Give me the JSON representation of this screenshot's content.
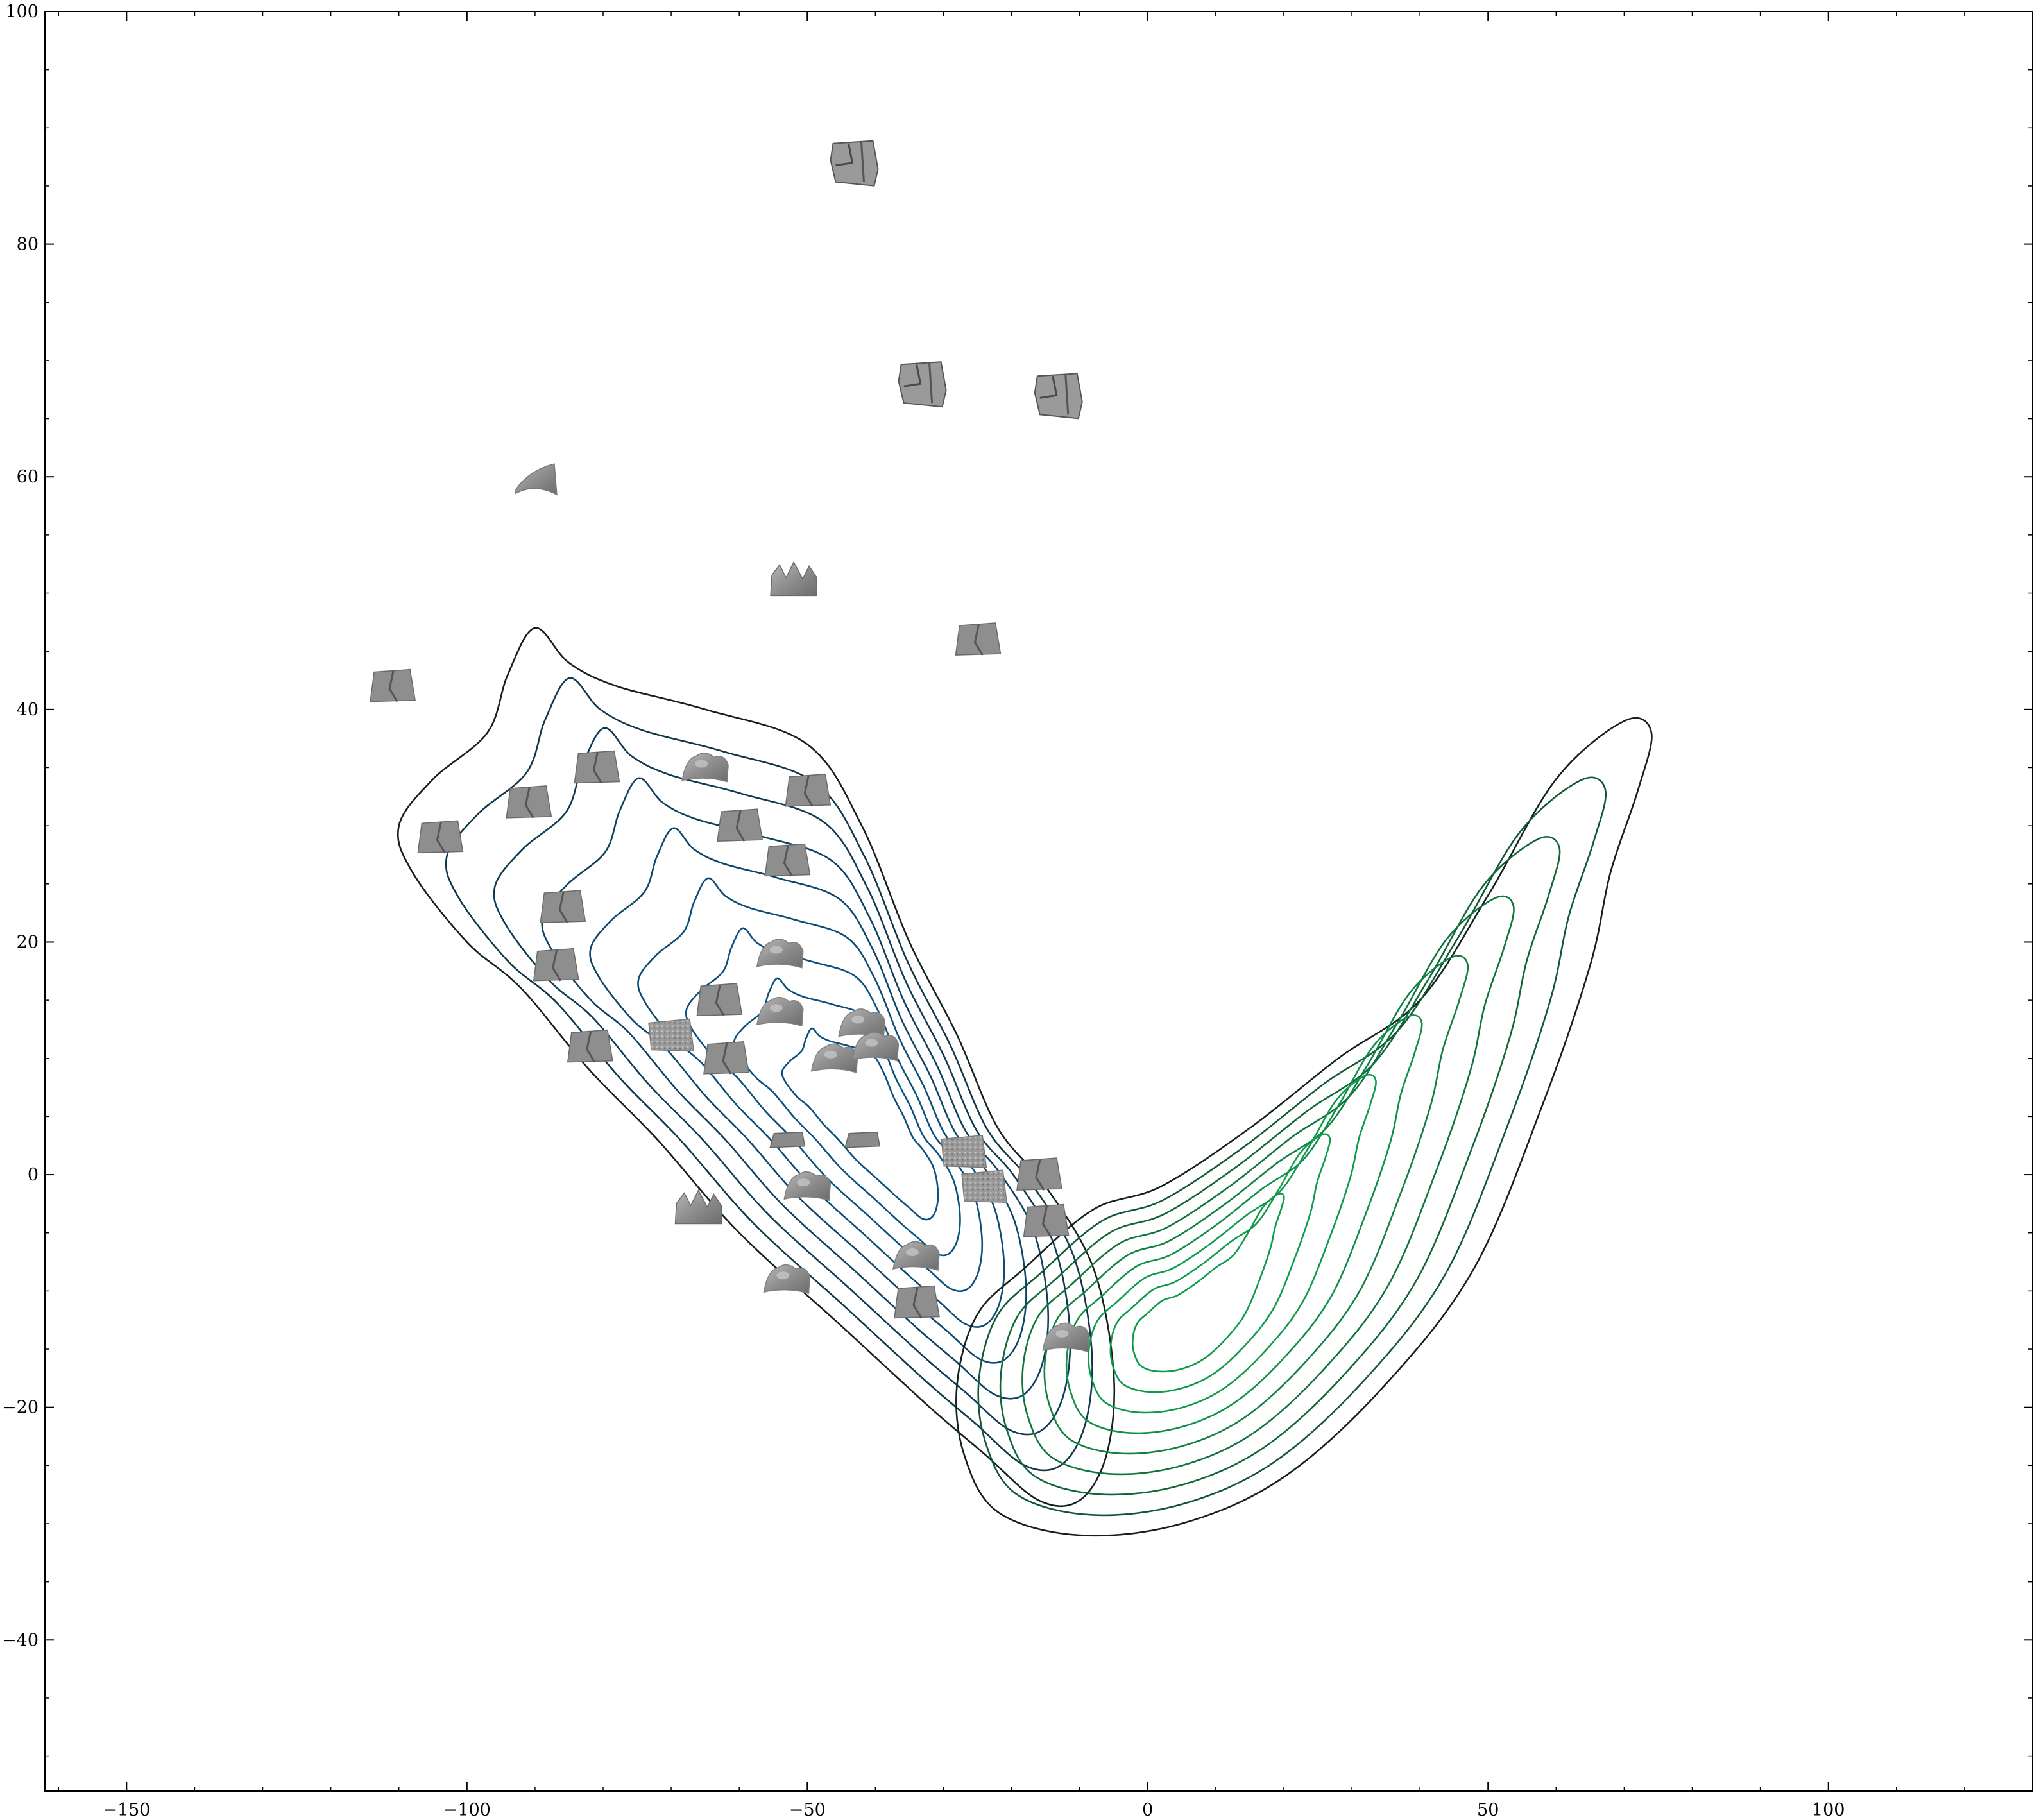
{
  "chart_data": {
    "type": "scatter",
    "subtype": "kde-contour-with-image-thumbnails",
    "title": "",
    "xlabel": "",
    "ylabel": "",
    "xlim": [
      -162,
      130
    ],
    "ylim": [
      -53,
      100
    ],
    "x_ticks": [
      -150,
      -100,
      -50,
      0,
      50,
      100
    ],
    "y_ticks": [
      -40,
      -20,
      0,
      20,
      40,
      60,
      80,
      100
    ],
    "x_tick_labels": [
      "−150",
      "−100",
      "−50",
      "0",
      "50",
      "100"
    ],
    "y_tick_labels": [
      "−40",
      "−20",
      "0",
      "20",
      "40",
      "60",
      "80",
      "100"
    ],
    "grid": false,
    "legend": "none",
    "colors": {
      "blue_density": "#0b4f7c",
      "green_density": "#0f9a4c",
      "outer_contour": "#13201d",
      "thumbnail_fill": "#8e8e8e"
    },
    "densities": [
      {
        "id": "blue",
        "center": [
          -38,
          3
        ],
        "levels": 9,
        "outer_contour": [
          [
            -110,
            30
          ],
          [
            -105,
            34
          ],
          [
            -97,
            38
          ],
          [
            -94,
            43
          ],
          [
            -90,
            47
          ],
          [
            -85,
            44
          ],
          [
            -78,
            42
          ],
          [
            -65,
            40
          ],
          [
            -50,
            37
          ],
          [
            -42,
            30
          ],
          [
            -35,
            20
          ],
          [
            -28,
            12
          ],
          [
            -22,
            4
          ],
          [
            -15,
            -1
          ],
          [
            -8,
            -8
          ],
          [
            -5,
            -17
          ],
          [
            -6,
            -24
          ],
          [
            -10,
            -28
          ],
          [
            -16,
            -28
          ],
          [
            -24,
            -24
          ],
          [
            -32,
            -20
          ],
          [
            -45,
            -13
          ],
          [
            -60,
            -5
          ],
          [
            -72,
            3
          ],
          [
            -82,
            9
          ],
          [
            -92,
            16
          ],
          [
            -100,
            20
          ],
          [
            -108,
            26
          ]
        ]
      },
      {
        "id": "green",
        "center": [
          5,
          -13
        ],
        "levels": 9,
        "outer_contour": [
          [
            -28,
            -18
          ],
          [
            -27,
            -24
          ],
          [
            -22,
            -29
          ],
          [
            -10,
            -31
          ],
          [
            5,
            -30
          ],
          [
            20,
            -26
          ],
          [
            35,
            -18
          ],
          [
            48,
            -8
          ],
          [
            58,
            6
          ],
          [
            65,
            18
          ],
          [
            68,
            26
          ],
          [
            72,
            33
          ],
          [
            74,
            38
          ],
          [
            70,
            39
          ],
          [
            60,
            34
          ],
          [
            50,
            24
          ],
          [
            40,
            15
          ],
          [
            28,
            10
          ],
          [
            15,
            4
          ],
          [
            2,
            -1
          ],
          [
            -8,
            -3
          ],
          [
            -18,
            -8
          ],
          [
            -25,
            -12
          ]
        ]
      }
    ],
    "thumbnail_points": [
      {
        "x": -43,
        "y": 87,
        "shape": "box"
      },
      {
        "x": -33,
        "y": 68,
        "shape": "box"
      },
      {
        "x": -13,
        "y": 67,
        "shape": "box"
      },
      {
        "x": -90,
        "y": 60,
        "shape": "sheet"
      },
      {
        "x": -52,
        "y": 51,
        "shape": "peaks"
      },
      {
        "x": -25,
        "y": 46,
        "shape": "slab"
      },
      {
        "x": -111,
        "y": 42,
        "shape": "slab"
      },
      {
        "x": -81,
        "y": 35,
        "shape": "slab"
      },
      {
        "x": -65,
        "y": 35,
        "shape": "bumpy"
      },
      {
        "x": -50,
        "y": 33,
        "shape": "slab"
      },
      {
        "x": -91,
        "y": 32,
        "shape": "slab"
      },
      {
        "x": -104,
        "y": 29,
        "shape": "slab"
      },
      {
        "x": -60,
        "y": 30,
        "shape": "slab"
      },
      {
        "x": -53,
        "y": 27,
        "shape": "slab"
      },
      {
        "x": -86,
        "y": 23,
        "shape": "slab"
      },
      {
        "x": -54,
        "y": 19,
        "shape": "bumpy"
      },
      {
        "x": -87,
        "y": 18,
        "shape": "slab"
      },
      {
        "x": -63,
        "y": 15,
        "shape": "slab"
      },
      {
        "x": -54,
        "y": 14,
        "shape": "bumpy"
      },
      {
        "x": -42,
        "y": 13,
        "shape": "bumpy"
      },
      {
        "x": -70,
        "y": 12,
        "shape": "speckled"
      },
      {
        "x": -82,
        "y": 11,
        "shape": "slab"
      },
      {
        "x": -62,
        "y": 10,
        "shape": "slab"
      },
      {
        "x": -46,
        "y": 10,
        "shape": "bumpy"
      },
      {
        "x": -40,
        "y": 11,
        "shape": "bumpy"
      },
      {
        "x": -53,
        "y": 3,
        "shape": "flat"
      },
      {
        "x": -42,
        "y": 3,
        "shape": "flat"
      },
      {
        "x": -27,
        "y": 2,
        "shape": "speckled"
      },
      {
        "x": -16,
        "y": 0,
        "shape": "slab"
      },
      {
        "x": -50,
        "y": -1,
        "shape": "bumpy"
      },
      {
        "x": -24,
        "y": -1,
        "shape": "speckled"
      },
      {
        "x": -15,
        "y": -4,
        "shape": "slab"
      },
      {
        "x": -66,
        "y": -3,
        "shape": "peaks"
      },
      {
        "x": -34,
        "y": -7,
        "shape": "bumpy"
      },
      {
        "x": -53,
        "y": -9,
        "shape": "bumpy"
      },
      {
        "x": -34,
        "y": -11,
        "shape": "slab"
      },
      {
        "x": -12,
        "y": -14,
        "shape": "bumpy"
      }
    ]
  }
}
